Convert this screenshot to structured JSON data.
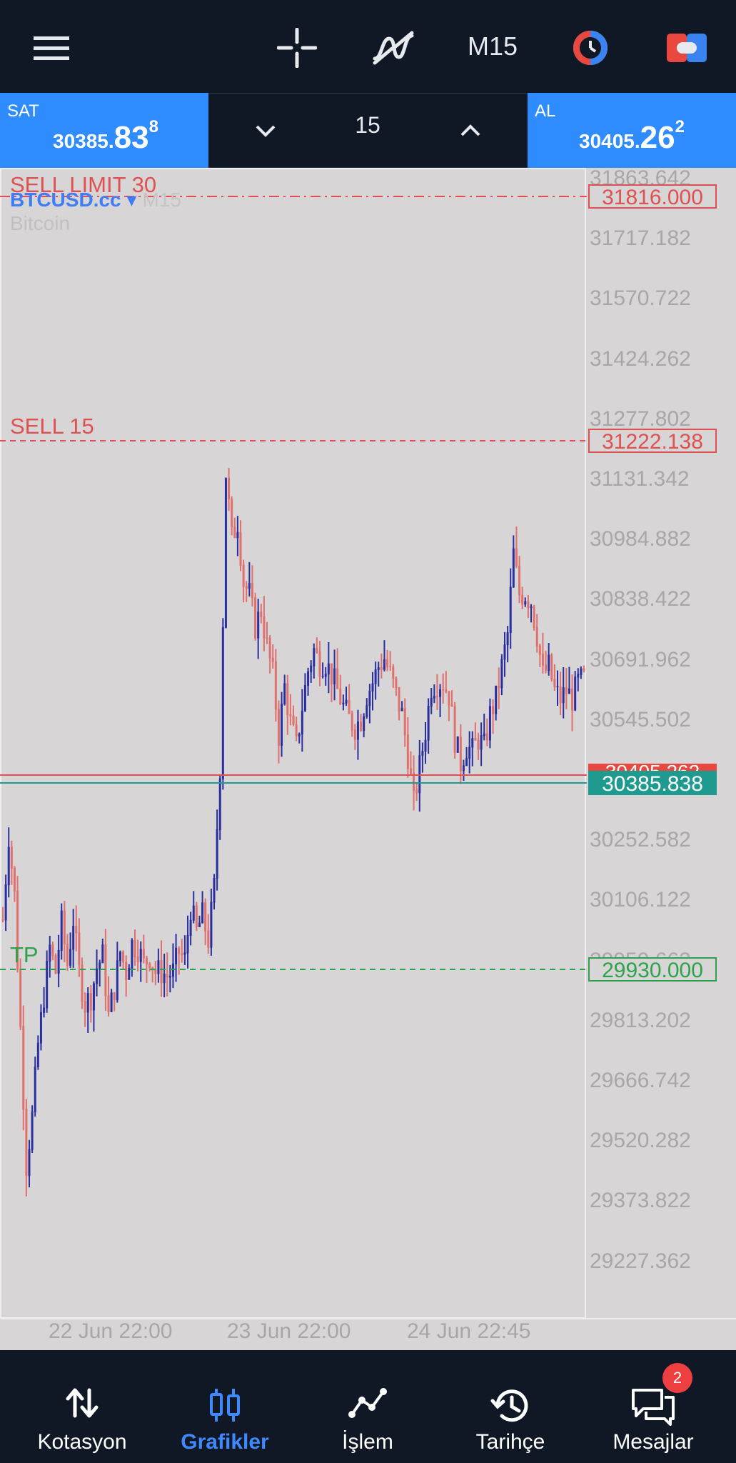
{
  "toolbar": {
    "menu_icon": "hamburger-menu-icon",
    "crosshair_icon": "crosshair-icon",
    "indicator_icon": "indicator-icon",
    "timeframe": "M15",
    "clock_icon": "clock-icon",
    "toggle_icon": "trade-toggle-icon"
  },
  "quote": {
    "sell_label": "SAT",
    "sell_price_main": "30385.",
    "sell_price_big": "83",
    "sell_price_sup": "8",
    "buy_label": "AL",
    "buy_price_main": "30405.",
    "buy_price_big": "26",
    "buy_price_sup": "2",
    "volume": "15"
  },
  "chart": {
    "symbol": "BTCUSD.cc",
    "symbol_timeframe": "M15",
    "description": "Bitcoin",
    "sell_limit_label": "SELL LIMIT 30",
    "sell_limit_price": "31816.000",
    "sell_label": "SELL 15",
    "sell_price": "31222.138",
    "tp_label": "TP",
    "tp_price": "29930.000",
    "ask_price": "30405.262",
    "bid_price": "30385.838",
    "y_ticks": [
      "31863.642",
      "31717.182",
      "31570.722",
      "31424.262",
      "31277.802",
      "31131.342",
      "30984.882",
      "30838.422",
      "30691.962",
      "30545.502",
      "30252.582",
      "30106.122",
      "29959.662",
      "29813.202",
      "29666.742",
      "29520.282",
      "29373.822",
      "29227.362"
    ],
    "x_ticks": [
      "22 Jun 22:00",
      "23 Jun 22:00",
      "24 Jun 22:45"
    ],
    "up_color": "#2a2fa0",
    "down_color": "#e0706c"
  },
  "chart_data": {
    "type": "candlestick",
    "symbol": "BTCUSD.cc",
    "timeframe": "M15",
    "ylim": [
      29100,
      31960
    ],
    "x_ticks": [
      "22 Jun 22:00",
      "23 Jun 22:00",
      "24 Jun 22:45"
    ],
    "levels": {
      "sell_limit": 31816.0,
      "sell": 31222.138,
      "tp": 29930.0,
      "ask": 30405.262,
      "bid": 30385.838
    },
    "price_path": [
      [
        0,
        30090
      ],
      [
        2,
        30300
      ],
      [
        4,
        30150
      ],
      [
        6,
        29820
      ],
      [
        8,
        29480
      ],
      [
        10,
        29600
      ],
      [
        12,
        29780
      ],
      [
        14,
        29900
      ],
      [
        16,
        30020
      ],
      [
        18,
        29960
      ],
      [
        20,
        30080
      ],
      [
        22,
        29980
      ],
      [
        24,
        30090
      ],
      [
        26,
        29960
      ],
      [
        28,
        29880
      ],
      [
        30,
        29900
      ],
      [
        32,
        29970
      ],
      [
        34,
        30000
      ],
      [
        36,
        29850
      ],
      [
        38,
        29920
      ],
      [
        40,
        30010
      ],
      [
        42,
        29960
      ],
      [
        44,
        30030
      ],
      [
        46,
        30020
      ],
      [
        48,
        29980
      ],
      [
        50,
        30000
      ],
      [
        52,
        29960
      ],
      [
        54,
        29960
      ],
      [
        56,
        29950
      ],
      [
        58,
        29960
      ],
      [
        60,
        30010
      ],
      [
        62,
        29990
      ],
      [
        64,
        30120
      ],
      [
        66,
        30060
      ],
      [
        68,
        30100
      ],
      [
        70,
        30040
      ],
      [
        72,
        30170
      ],
      [
        74,
        30470
      ],
      [
        76,
        31200
      ],
      [
        78,
        31040
      ],
      [
        80,
        31080
      ],
      [
        82,
        30930
      ],
      [
        84,
        30900
      ],
      [
        86,
        30820
      ],
      [
        88,
        30860
      ],
      [
        90,
        30770
      ],
      [
        92,
        30700
      ],
      [
        94,
        30550
      ],
      [
        96,
        30670
      ],
      [
        98,
        30580
      ],
      [
        100,
        30520
      ],
      [
        102,
        30620
      ],
      [
        104,
        30710
      ],
      [
        106,
        30760
      ],
      [
        108,
        30730
      ],
      [
        110,
        30730
      ],
      [
        112,
        30700
      ],
      [
        114,
        30660
      ],
      [
        116,
        30620
      ],
      [
        118,
        30590
      ],
      [
        120,
        30570
      ],
      [
        122,
        30590
      ],
      [
        124,
        30650
      ],
      [
        126,
        30680
      ],
      [
        128,
        30720
      ],
      [
        130,
        30740
      ],
      [
        132,
        30700
      ],
      [
        134,
        30650
      ],
      [
        136,
        30600
      ],
      [
        138,
        30500
      ],
      [
        140,
        30380
      ],
      [
        142,
        30470
      ],
      [
        144,
        30560
      ],
      [
        146,
        30670
      ],
      [
        148,
        30680
      ],
      [
        150,
        30680
      ],
      [
        152,
        30650
      ],
      [
        154,
        30540
      ],
      [
        156,
        30480
      ],
      [
        158,
        30520
      ],
      [
        160,
        30510
      ],
      [
        162,
        30540
      ],
      [
        164,
        30520
      ],
      [
        166,
        30600
      ],
      [
        168,
        30640
      ],
      [
        170,
        30720
      ],
      [
        172,
        30800
      ],
      [
        174,
        31000
      ],
      [
        176,
        30900
      ],
      [
        178,
        30900
      ],
      [
        180,
        30880
      ],
      [
        182,
        30800
      ],
      [
        184,
        30700
      ],
      [
        186,
        30720
      ],
      [
        188,
        30660
      ],
      [
        190,
        30640
      ],
      [
        192,
        30660
      ],
      [
        194,
        30640
      ],
      [
        196,
        30680
      ],
      [
        198,
        30690
      ]
    ]
  },
  "nav": [
    {
      "label": "Kotasyon",
      "icon": "quotes-arrows-icon"
    },
    {
      "label": "Grafikler",
      "icon": "candlestick-chart-icon"
    },
    {
      "label": "İşlem",
      "icon": "trade-line-icon"
    },
    {
      "label": "Tarihçe",
      "icon": "history-clock-icon"
    },
    {
      "label": "Mesajlar",
      "icon": "messages-icon"
    }
  ],
  "messages_badge": "2"
}
